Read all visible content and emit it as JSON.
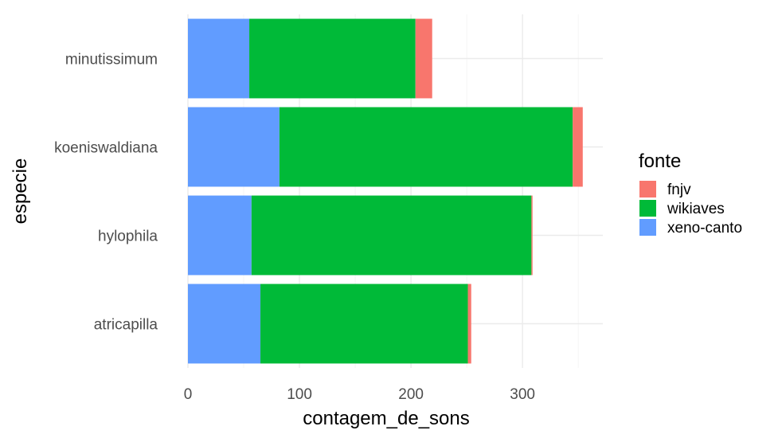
{
  "chart_data": {
    "type": "bar",
    "orientation": "horizontal",
    "stacked": true,
    "categories": [
      "minutissimum",
      "koeniswaldiana",
      "hylophila",
      "atricapilla"
    ],
    "series": [
      {
        "name": "xeno-canto",
        "color": "#619CFF",
        "values": [
          55,
          82,
          57,
          65
        ]
      },
      {
        "name": "wikiaves",
        "color": "#00BA38",
        "values": [
          149,
          263,
          251,
          186
        ]
      },
      {
        "name": "fnjv",
        "color": "#F8766D",
        "values": [
          15,
          9,
          1,
          3
        ]
      }
    ],
    "xlabel": "contagem_de_sons",
    "ylabel": "especie",
    "xlim": [
      0,
      372
    ],
    "x_ticks": [
      0,
      100,
      200,
      300
    ],
    "grid": true,
    "legend": {
      "title": "fonte",
      "position": "right",
      "order": [
        "fnjv",
        "wikiaves",
        "xeno-canto"
      ]
    }
  }
}
